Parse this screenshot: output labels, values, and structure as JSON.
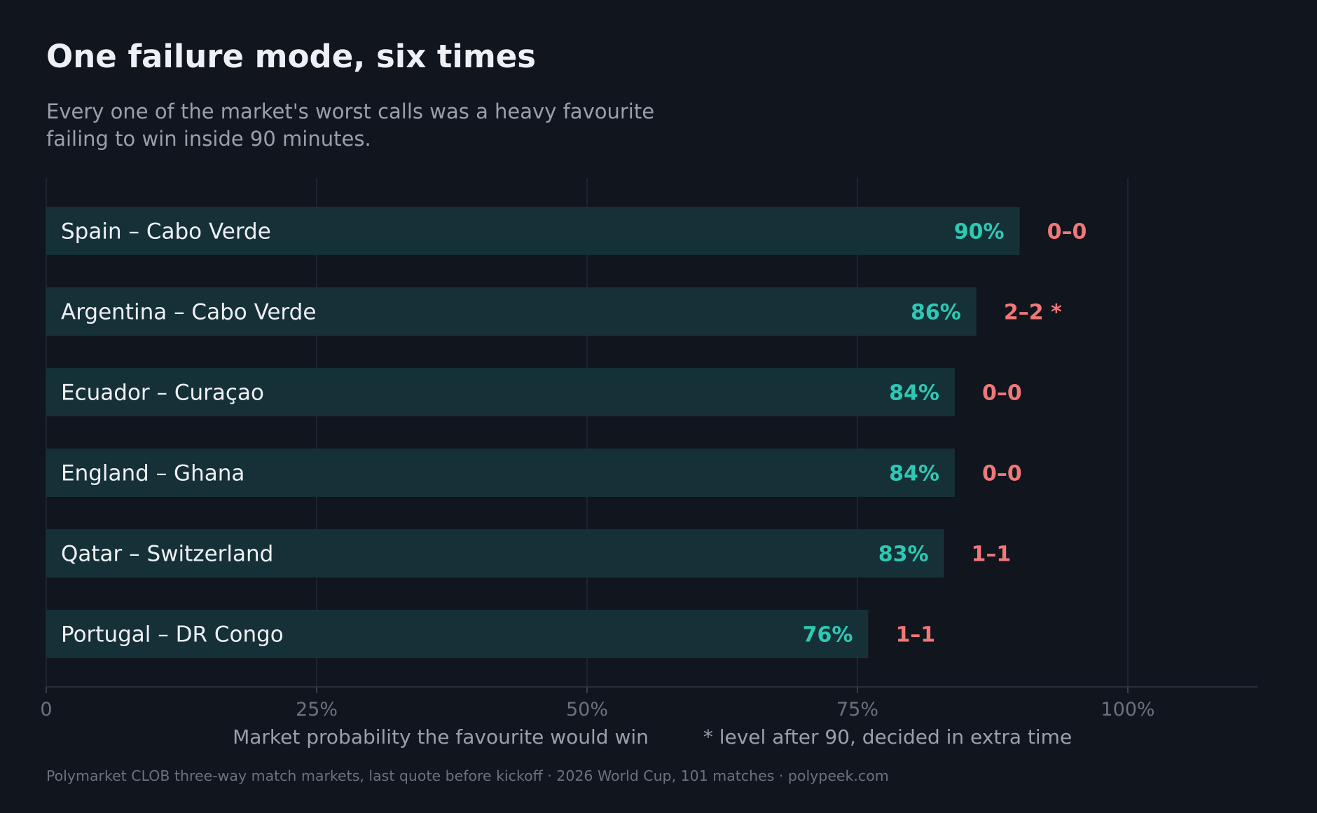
{
  "title": "One failure mode, six times",
  "subtitle_lines": [
    "Every one of the market's worst calls was a heavy favourite",
    "failing to win inside 90 minutes."
  ],
  "footnote": "Polymarket CLOB three-way match markets, last quote before kickoff  ·  2026 World Cup, 101 matches  ·  polypeek.com",
  "colors": {
    "background": "#11151e",
    "bar": "#163037",
    "gridline": "#242833",
    "percent": "#2ec9b4",
    "score": "#f07878"
  },
  "chart_data": {
    "type": "bar",
    "orientation": "horizontal",
    "categories": [
      "Spain – Cabo Verde",
      "Argentina – Cabo Verde",
      "Ecuador – Curaçao",
      "England – Ghana",
      "Qatar – Switzerland",
      "Portugal – DR Congo"
    ],
    "values": [
      90,
      86,
      84,
      84,
      83,
      76
    ],
    "value_labels": [
      "90%",
      "86%",
      "84%",
      "84%",
      "83%",
      "76%"
    ],
    "scores": [
      "0–0",
      "2–2 *",
      "0–0",
      "0–0",
      "1–1",
      "1–1"
    ],
    "xlim": [
      0,
      112
    ],
    "xticks": [
      0,
      25,
      50,
      75,
      100
    ],
    "xtick_labels": [
      "0",
      "25%",
      "50%",
      "75%",
      "100%"
    ],
    "xlabel": "Market probability the favourite would win",
    "annotation": "* level after 90, decided in extra time",
    "grid": true
  }
}
